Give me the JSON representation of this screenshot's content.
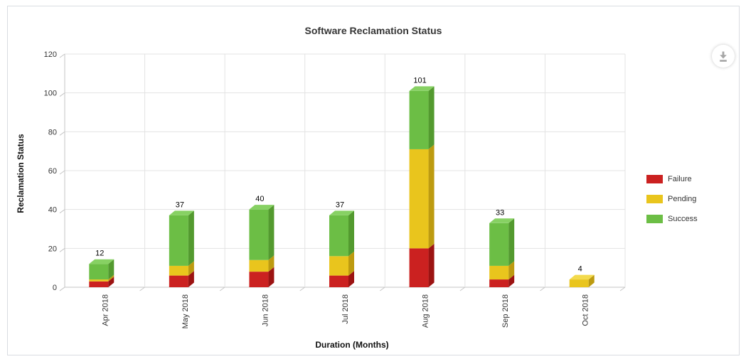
{
  "widget": {
    "download_button": {
      "icon": "download-icon",
      "glyph_color": "#a6a6a6"
    }
  },
  "chart_data": {
    "type": "bar",
    "variant": "3d-stacked-column",
    "title": "Software Reclamation Status",
    "xlabel": "Duration (Months)",
    "ylabel": "Reclamation Status",
    "categories": [
      "Apr 2018",
      "May 2018",
      "Jun 2018",
      "Jul 2018",
      "Aug 2018",
      "Sep 2018",
      "Oct 2018"
    ],
    "series": [
      {
        "name": "Failure",
        "color": "#cb2120",
        "side_color": "#9c1312",
        "top_color": "#de4b43",
        "values": [
          3,
          6,
          8,
          6,
          20,
          4,
          0
        ]
      },
      {
        "name": "Pending",
        "color": "#e9c51d",
        "side_color": "#bd9b10",
        "top_color": "#f3da4d",
        "values": [
          1,
          5,
          6,
          10,
          51,
          7,
          4
        ]
      },
      {
        "name": "Success",
        "color": "#6cbe45",
        "side_color": "#539a2f",
        "top_color": "#87d163",
        "values": [
          8,
          26,
          26,
          21,
          30,
          22,
          0
        ]
      }
    ],
    "totals": [
      12,
      37,
      40,
      37,
      101,
      33,
      4
    ],
    "ylim": [
      0,
      120
    ],
    "yticks": [
      0,
      20,
      40,
      60,
      80,
      100,
      120
    ],
    "grid": true,
    "legend_position": "right",
    "axis_colors": {
      "gridline": "#e3e3e3",
      "axis_line": "#c6c6c6",
      "tick_label": "#333333",
      "value_label": "#000000"
    }
  }
}
